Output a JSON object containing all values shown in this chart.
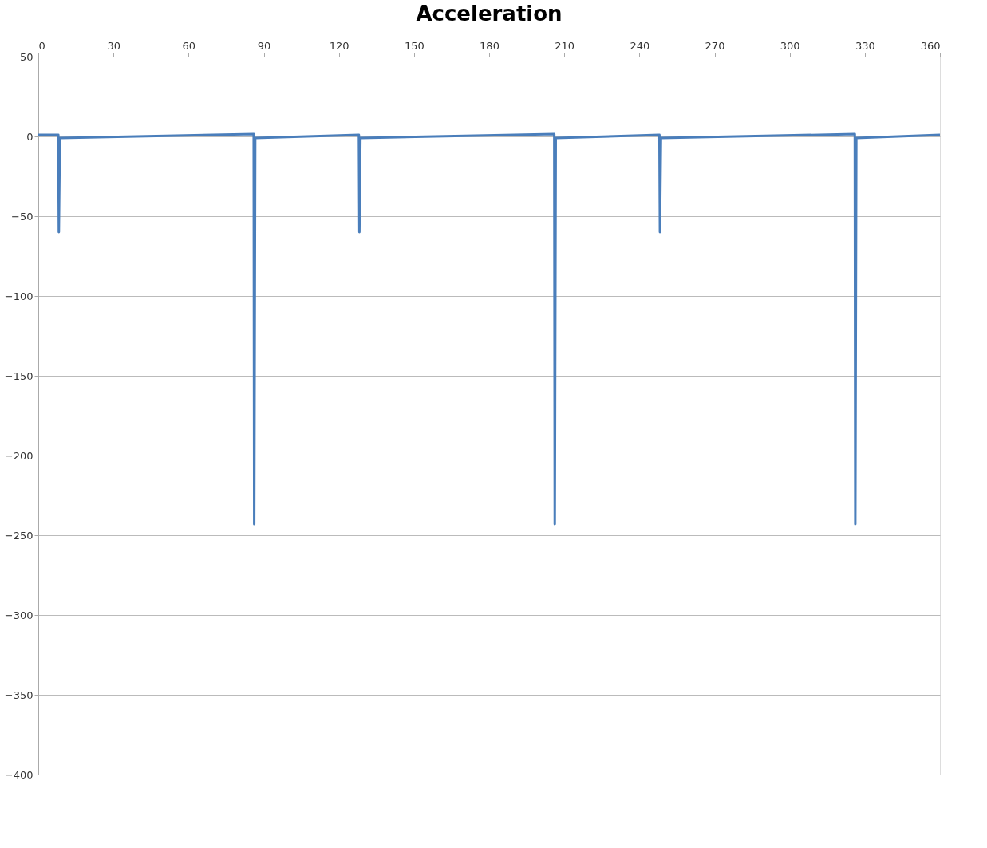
{
  "chart_data": {
    "type": "line",
    "title": "Acceleration",
    "x": [
      0,
      8,
      8.2,
      8.6,
      86,
      86.2,
      86.6,
      128,
      128.2,
      128.6,
      206,
      206.2,
      206.6,
      248,
      248.2,
      248.6,
      326,
      326.2,
      326.6,
      360
    ],
    "series": [
      {
        "color": "#4a7ebb",
        "values": [
          1,
          1,
          -60,
          -1,
          1.5,
          -243,
          -1,
          1,
          -60,
          -1,
          1.5,
          -243,
          -1,
          1,
          -60,
          -1,
          1.5,
          -243,
          -1,
          1
        ]
      }
    ],
    "xlim": [
      0,
      360
    ],
    "xticks": [
      0,
      30,
      60,
      90,
      120,
      150,
      180,
      210,
      240,
      270,
      300,
      330,
      360
    ],
    "ylim": [
      -400,
      50
    ],
    "yticks": [
      -400,
      -350,
      -300,
      -250,
      -200,
      -150,
      -100,
      -50,
      0,
      50
    ],
    "grid": "y",
    "marker": "none",
    "line_style": "solid"
  }
}
